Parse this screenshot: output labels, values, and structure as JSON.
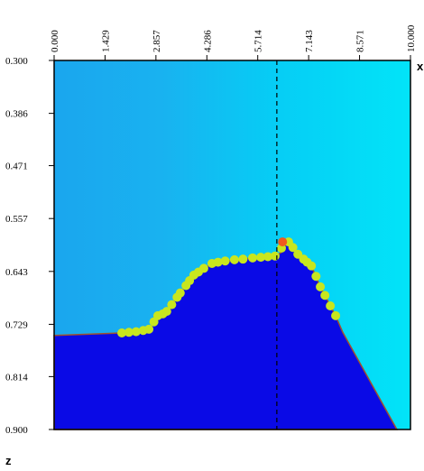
{
  "chart_data": {
    "type": "area",
    "x_label": "x",
    "y_label": "z",
    "xlim": [
      0,
      10
    ],
    "ylim": [
      0.3,
      0.9
    ],
    "y_inverted": true,
    "xticks": [
      {
        "value": 0,
        "label": "0.000"
      },
      {
        "value": 1.429,
        "label": "1.429"
      },
      {
        "value": 2.857,
        "label": "2.857"
      },
      {
        "value": 4.286,
        "label": "4.286"
      },
      {
        "value": 5.714,
        "label": "5.714"
      },
      {
        "value": 7.143,
        "label": "7.143"
      },
      {
        "value": 8.571,
        "label": "8.571"
      },
      {
        "value": 10,
        "label": "10.000"
      }
    ],
    "yticks": [
      {
        "value": 0.3,
        "label": "0.300"
      },
      0.386,
      0.471,
      0.557,
      0.643,
      0.729,
      0.814,
      {
        "value": 0.9,
        "label": "0.900"
      }
    ],
    "vline": 6.25,
    "series": [
      {
        "kind": "area",
        "color": "#0a0ae6",
        "x": [
          0,
          1.9,
          2.66,
          2.91,
          3.16,
          3.54,
          3.92,
          4.43,
          5.06,
          5.57,
          6.2,
          6.38,
          6.46,
          6.58,
          6.84,
          7.22,
          7.47,
          7.9,
          8.1,
          9.62
        ],
        "values": [
          0.747,
          0.743,
          0.737,
          0.715,
          0.708,
          0.678,
          0.649,
          0.63,
          0.624,
          0.621,
          0.618,
          0.612,
          0.598,
          0.595,
          0.615,
          0.634,
          0.668,
          0.715,
          0.742,
          0.9
        ]
      },
      {
        "kind": "points",
        "color": "#c8e61e",
        "x": [
          1.9,
          2.1,
          2.3,
          2.5,
          2.66,
          2.8,
          2.91,
          3.05,
          3.16,
          3.3,
          3.45,
          3.54,
          3.7,
          3.8,
          3.92,
          4.05,
          4.2,
          4.43,
          4.6,
          4.8,
          5.06,
          5.3,
          5.57,
          5.8,
          6.0,
          6.2,
          6.38,
          6.58,
          6.7,
          6.84,
          7.0,
          7.1,
          7.22,
          7.35,
          7.47,
          7.6,
          7.75,
          7.9
        ],
        "values": [
          0.743,
          0.742,
          0.741,
          0.739,
          0.737,
          0.725,
          0.715,
          0.712,
          0.708,
          0.697,
          0.685,
          0.678,
          0.666,
          0.658,
          0.649,
          0.644,
          0.638,
          0.63,
          0.628,
          0.626,
          0.624,
          0.623,
          0.621,
          0.62,
          0.619,
          0.618,
          0.605,
          0.595,
          0.604,
          0.615,
          0.623,
          0.628,
          0.634,
          0.651,
          0.668,
          0.682,
          0.699,
          0.715
        ]
      },
      {
        "kind": "points",
        "color": "#f05a1e",
        "x": [
          6.41
        ],
        "values": [
          0.595
        ]
      }
    ]
  }
}
